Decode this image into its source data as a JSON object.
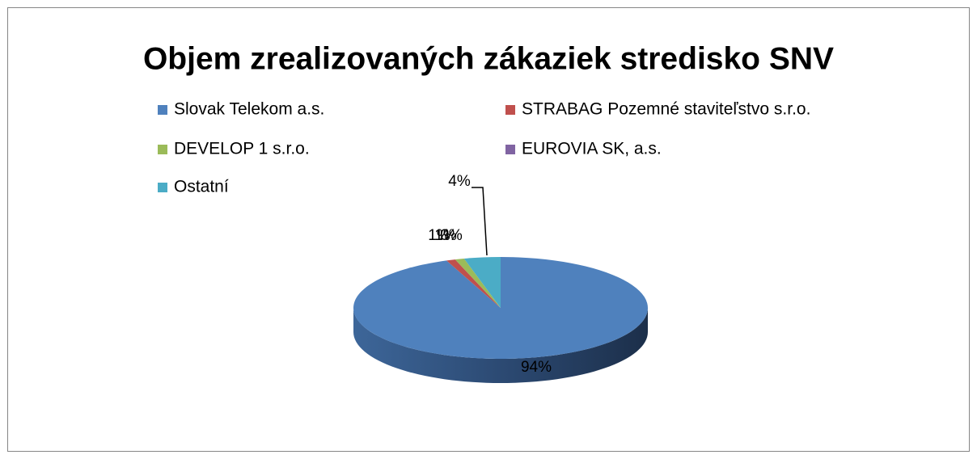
{
  "chart_data": {
    "type": "pie",
    "title": "Objem zrealizovaných zákaziek stredisko SNV",
    "categories": [
      "Slovak Telekom a.s.",
      "STRABAG Pozemné staviteľstvo s.r.o.",
      "DEVELOP 1 s.r.o.",
      "EUROVIA SK, a.s.",
      "Ostatní"
    ],
    "values": [
      94,
      1,
      1,
      0,
      4
    ],
    "value_labels": [
      "94%",
      "1%",
      "1%",
      "0%",
      "4%"
    ],
    "colors": [
      "#4f81bd",
      "#c0504d",
      "#9bbb59",
      "#8064a2",
      "#4bacc6"
    ]
  }
}
